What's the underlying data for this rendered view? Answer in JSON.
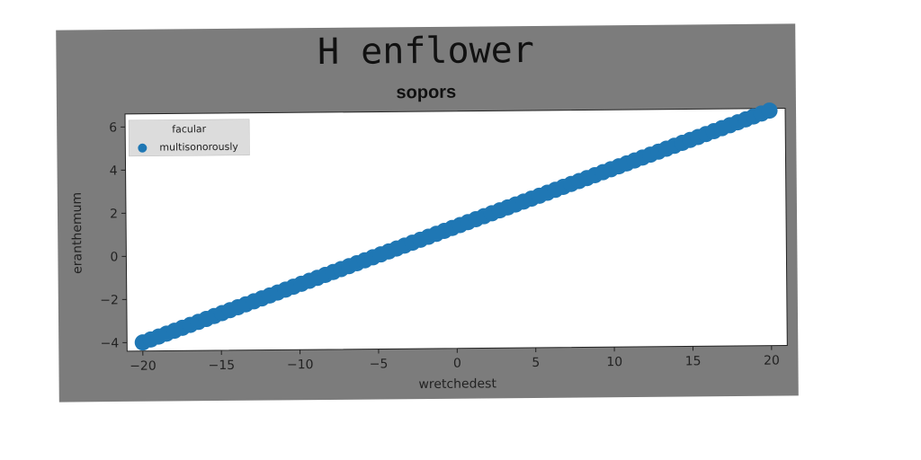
{
  "chart_data": {
    "type": "scatter",
    "title": "H enflower",
    "subtitle": "sopors",
    "xlabel": "wretchedest",
    "ylabel": "eranthemum",
    "xlim": [
      -21,
      21
    ],
    "ylim": [
      -4.4,
      6.6
    ],
    "x_ticks": [
      -20,
      -15,
      -10,
      -5,
      0,
      5,
      10,
      15,
      20
    ],
    "y_ticks": [
      -4,
      -2,
      0,
      2,
      4,
      6
    ],
    "legend": {
      "title": "facular",
      "placement": "upper-left",
      "entries": [
        "multisonorously"
      ]
    },
    "series": [
      {
        "name": "multisonorously",
        "color": "#1f77b4",
        "x_start": -20,
        "x_end": 20,
        "count": 80,
        "y_start": -4,
        "y_end": 6.5
      }
    ]
  }
}
